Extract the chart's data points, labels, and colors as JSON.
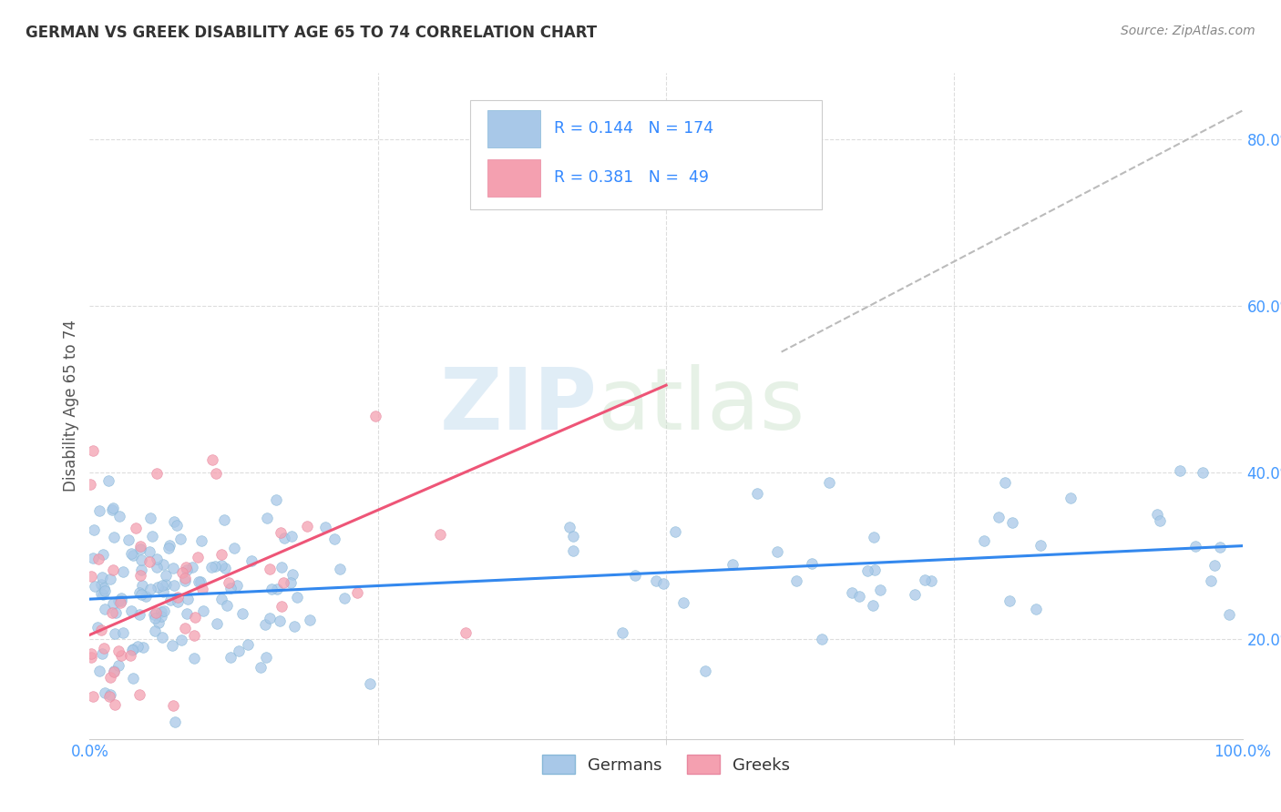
{
  "title": "GERMAN VS GREEK DISABILITY AGE 65 TO 74 CORRELATION CHART",
  "source": "Source: ZipAtlas.com",
  "ylabel": "Disability Age 65 to 74",
  "xlim": [
    0.0,
    1.0
  ],
  "ylim": [
    0.08,
    0.88
  ],
  "yticks": [
    0.2,
    0.4,
    0.6,
    0.8
  ],
  "ytick_labels": [
    "20.0%",
    "40.0%",
    "60.0%",
    "80.0%"
  ],
  "german_color": "#a8c8e8",
  "greek_color": "#f4a0b0",
  "german_R": 0.144,
  "german_N": 174,
  "greek_R": 0.381,
  "greek_N": 49,
  "watermark_zip": "ZIP",
  "watermark_atlas": "atlas",
  "background_color": "#ffffff",
  "grid_color": "#dddddd",
  "legend_label_german": "Germans",
  "legend_label_greek": "Greeks",
  "german_line_x": [
    0.0,
    1.0
  ],
  "german_line_y": [
    0.248,
    0.312
  ],
  "greek_line_x": [
    0.0,
    0.5
  ],
  "greek_line_y": [
    0.205,
    0.505
  ],
  "ref_line_x": [
    0.6,
    1.0
  ],
  "ref_line_y": [
    0.545,
    0.835
  ]
}
